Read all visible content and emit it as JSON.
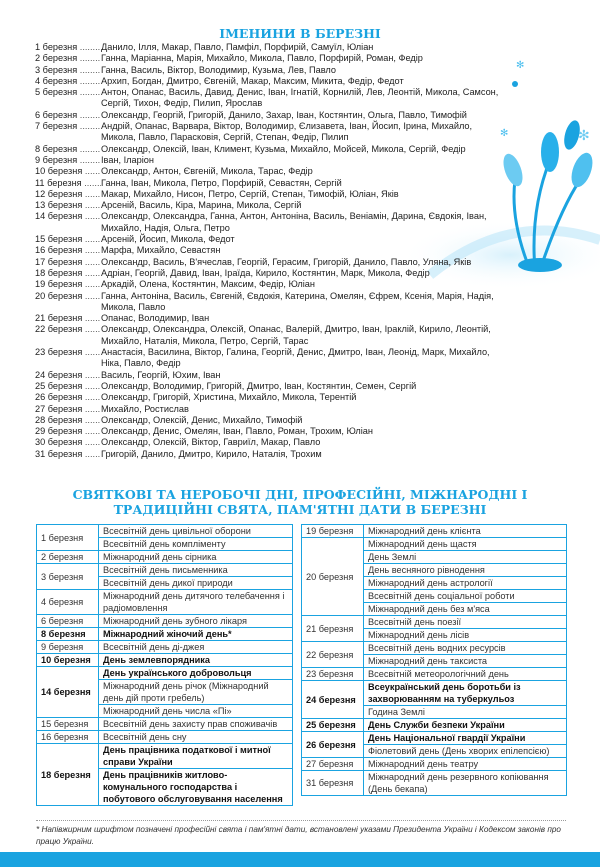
{
  "names_title": "ІМЕНИНИ В БЕРЕЗНІ",
  "names": [
    {
      "date": "1 березня",
      "names": "Данило, Ілля, Макар, Павло, Памфіл, Порфирій, Самуїл, Юліан"
    },
    {
      "date": "2 березня",
      "names": "Ганна, Маріанна, Марія, Михайло, Микола, Павло, Порфирій, Роман, Федір"
    },
    {
      "date": "3 березня",
      "names": "Ганна, Василь, Віктор, Володимир, Кузьма, Лев, Павло"
    },
    {
      "date": "4 березня",
      "names": "Архип, Богдан, Дмитро, Євгеній, Макар, Максим, Микита, Федір, Федот"
    },
    {
      "date": "5 березня",
      "names": "Антон, Опанас, Василь, Давид, Денис, Іван, Ігнатій, Корнилій, Лев, Леонтій, Микола, Самсон, Сергій, Тихон, Федір, Пилип, Ярослав"
    },
    {
      "date": "6 березня",
      "names": "Олександр, Георгій, Григорій, Данило, Захар, Іван, Костянтин, Ольга, Павло, Тимофій"
    },
    {
      "date": "7 березня",
      "names": "Андрій, Опанас, Варвара, Віктор, Володимир, Єлизавета, Іван, Йосип, Ірина, Михайло, Микола, Павло, Парасковія, Сергій, Степан, Федір, Пилип"
    },
    {
      "date": "8 березня",
      "names": "Олександр, Олексій, Іван, Климент, Кузьма, Михайло, Мойсей, Микола, Сергій, Федір"
    },
    {
      "date": "9 березня",
      "names": "Іван, Іларіон"
    },
    {
      "date": "10 березня",
      "names": "Олександр, Антон, Євгеній, Микола, Тарас, Федір"
    },
    {
      "date": "11 березня",
      "names": "Ганна, Іван, Микола, Петро, Порфирій, Севастян, Сергій"
    },
    {
      "date": "12 березня",
      "names": "Макар, Михайло, Нисон, Петро, Сергій, Степан, Тимофій, Юліан, Яків"
    },
    {
      "date": "13 березня",
      "names": "Арсеній, Василь, Кіра, Марина, Микола, Сергій"
    },
    {
      "date": "14 березня",
      "names": "Олександр, Олександра, Ганна, Антон, Антоніна, Василь, Веніамін, Дарина, Євдокія, Іван, Михайло, Надія, Ольга, Петро"
    },
    {
      "date": "15 березня",
      "names": "Арсеній, Йосип, Микола, Федот"
    },
    {
      "date": "16 березня",
      "names": "Марфа, Михайло, Севастян"
    },
    {
      "date": "17 березня",
      "names": "Олександр, Василь, В'ячеслав, Георгій, Герасим, Григорій, Данило, Павло, Уляна, Яків"
    },
    {
      "date": "18 березня",
      "names": "Адріан, Георгій, Давид, Іван, Іраїда, Кирило, Костянтин, Марк, Микола, Федір"
    },
    {
      "date": "19 березня",
      "names": "Аркадій, Олена, Костянтин, Максим, Федір, Юліан"
    },
    {
      "date": "20 березня",
      "names": "Ганна, Антоніна, Василь, Євгеній, Євдокія, Катерина, Омелян, Єфрем, Ксенія, Марія, Надія, Микола, Павло"
    },
    {
      "date": "21 березня",
      "names": "Опанас, Володимир, Іван"
    },
    {
      "date": "22 березня",
      "names": "Олександр, Олександра, Олексій, Опанас, Валерій, Дмитро, Іван, Іраклій, Кирило, Леонтій, Михайло, Наталія, Микола, Петро, Сергій, Тарас"
    },
    {
      "date": "23 березня",
      "names": "Анастасія, Василина, Віктор, Галина, Георгій, Денис, Дмитро, Іван, Леонід, Марк, Михайло, Ніка, Павло, Федір"
    },
    {
      "date": "24 березня",
      "names": "Василь, Георгій, Юхим, Іван"
    },
    {
      "date": "25 березня",
      "names": "Олександр, Володимир, Григорій, Дмитро, Іван, Костянтин, Семен, Сергій"
    },
    {
      "date": "26 березня",
      "names": "Олександр, Григорій, Христина, Михайло, Микола, Терентій"
    },
    {
      "date": "27 березня",
      "names": "Михайло, Ростислав"
    },
    {
      "date": "28 березня",
      "names": "Олександр, Олексій, Денис, Михайло, Тимофій"
    },
    {
      "date": "29 березня",
      "names": "Олександр, Денис, Омелян, Іван, Павло, Роман, Трохим, Юліан"
    },
    {
      "date": "30 березня",
      "names": "Олександр, Олексій, Віктор, Гавриїл, Макар, Павло"
    },
    {
      "date": "31 березня",
      "names": "Григорій, Данило, Дмитро, Кирило, Наталія, Трохим"
    }
  ],
  "holidays_title": "СВЯТКОВІ ТА НЕРОБОЧІ ДНІ, ПРОФЕСІЙНІ, МІЖНАРОДНІ І ТРАДИЦІЙНІ СВЯТА, ПАМ'ЯТНІ ДАТИ В БЕРЕЗНІ",
  "holidays_left": [
    {
      "date": "1 березня",
      "events": [
        {
          "text": "Всесвітній день цивільної оборони"
        },
        {
          "text": "Всесвітній день компліменту"
        }
      ]
    },
    {
      "date": "2 березня",
      "events": [
        {
          "text": "Міжнародний день сірника"
        }
      ]
    },
    {
      "date": "3 березня",
      "events": [
        {
          "text": "Всесвітній день письменника"
        },
        {
          "text": "Всесвітній день дикої природи"
        }
      ]
    },
    {
      "date": "4 березня",
      "events": [
        {
          "text": "Міжнародний день дитячого телебачення і радіомовлення"
        }
      ]
    },
    {
      "date": "6 березня",
      "events": [
        {
          "text": "Міжнародний день зубного лікаря"
        }
      ]
    },
    {
      "date": "8 березня",
      "bold": true,
      "events": [
        {
          "text": "Міжнародний жіночий день*",
          "bold": true
        }
      ]
    },
    {
      "date": "9 березня",
      "events": [
        {
          "text": "Всесвітній день ді-джея"
        }
      ]
    },
    {
      "date": "10 березня",
      "bold": true,
      "events": [
        {
          "text": "День землевпорядника",
          "bold": true
        }
      ]
    },
    {
      "date": "14 березня",
      "bold": true,
      "events": [
        {
          "text": "День українського добровольця",
          "bold": true
        },
        {
          "text": "Міжнародний день річок (Міжнародний день дій проти гребель)"
        },
        {
          "text": "Міжнародний день числа «Пі»"
        }
      ]
    },
    {
      "date": "15 березня",
      "events": [
        {
          "text": "Всесвітній день захисту прав споживачів"
        }
      ]
    },
    {
      "date": "16 березня",
      "events": [
        {
          "text": "Всесвітній день сну"
        }
      ]
    },
    {
      "date": "18 березня",
      "bold": true,
      "events": [
        {
          "text": "День працівника податкової і митної справи України",
          "bold": true
        },
        {
          "text": "День працівників житлово-комунального господарства і побутового обслуговування населення",
          "bold": true
        }
      ]
    }
  ],
  "holidays_right": [
    {
      "date": "19 березня",
      "events": [
        {
          "text": "Міжнародний день клієнта"
        }
      ]
    },
    {
      "date": "20 березня",
      "events": [
        {
          "text": "Міжнародний день щастя"
        },
        {
          "text": "День Землі"
        },
        {
          "text": "День весняного рівнодення"
        },
        {
          "text": "Міжнародний день астрології"
        },
        {
          "text": "Всесвітній день соціальної роботи"
        },
        {
          "text": "Міжнародний день без м'яса"
        }
      ]
    },
    {
      "date": "21 березня",
      "events": [
        {
          "text": "Всесвітній день поезії"
        },
        {
          "text": "Міжнародний день лісів"
        }
      ]
    },
    {
      "date": "22 березня",
      "events": [
        {
          "text": "Всесвітній день водних ресурсів"
        },
        {
          "text": "Міжнародний день таксиста"
        }
      ]
    },
    {
      "date": "23 березня",
      "events": [
        {
          "text": "Всесвітній метеорологічний день"
        }
      ]
    },
    {
      "date": "24 березня",
      "bold": true,
      "events": [
        {
          "text": "Всеукраїнський день боротьби із захворюванням на туберкульоз",
          "bold": true
        },
        {
          "text": "Година Землі"
        }
      ]
    },
    {
      "date": "25 березня",
      "bold": true,
      "events": [
        {
          "text": "День Служби безпеки України",
          "bold": true
        }
      ]
    },
    {
      "date": "26 березня",
      "bold": true,
      "events": [
        {
          "text": "День Національної гвардії України",
          "bold": true
        },
        {
          "text": "Фіолетовий день (День хворих епілепсією)"
        }
      ]
    },
    {
      "date": "27 березня",
      "events": [
        {
          "text": "Міжнародний день театру"
        }
      ]
    },
    {
      "date": "31 березня",
      "events": [
        {
          "text": "Міжнародний день резервного копіювання (День бекапа)"
        }
      ]
    }
  ],
  "footnote": "* Напівжирним шрифтом позначені професійні свята і пам'ятні дати, встановлені указами Президента України і Кодексом законів про працю України.",
  "colors": {
    "accent": "#1aa3e0"
  }
}
